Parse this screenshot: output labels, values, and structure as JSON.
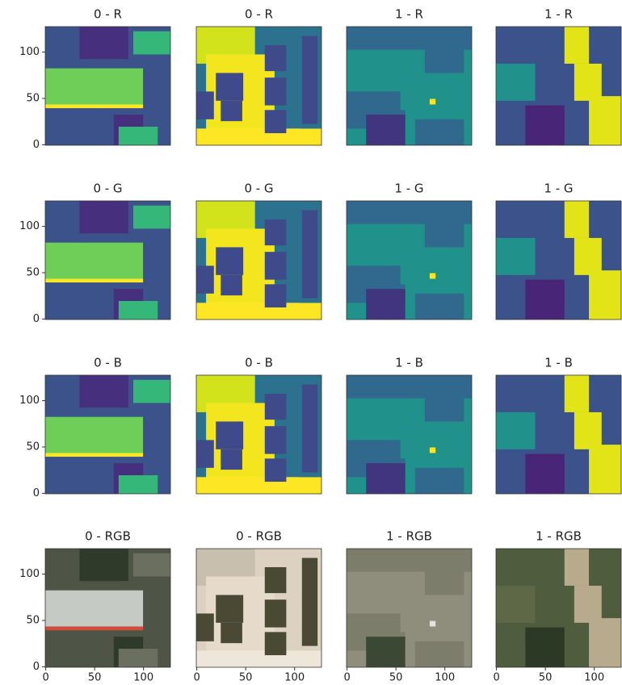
{
  "chart_data": [
    {
      "type": "image",
      "title": "0 - R",
      "ylim": [
        127.5,
        -0.5
      ],
      "yticks": [
        0,
        50,
        100
      ]
    },
    {
      "type": "image",
      "title": "0 - R"
    },
    {
      "type": "image",
      "title": "1 - R"
    },
    {
      "type": "image",
      "title": "1 - R"
    },
    {
      "type": "image",
      "title": "0 - G",
      "ylim": [
        127.5,
        -0.5
      ],
      "yticks": [
        0,
        50,
        100
      ]
    },
    {
      "type": "image",
      "title": "0 - G"
    },
    {
      "type": "image",
      "title": "1 - G"
    },
    {
      "type": "image",
      "title": "1 - G"
    },
    {
      "type": "image",
      "title": "0 - B",
      "ylim": [
        127.5,
        -0.5
      ],
      "yticks": [
        0,
        50,
        100
      ]
    },
    {
      "type": "image",
      "title": "0 - B"
    },
    {
      "type": "image",
      "title": "1 - B"
    },
    {
      "type": "image",
      "title": "1 - B"
    },
    {
      "type": "image",
      "title": "0 - RGB",
      "xlim": [
        -0.5,
        127.5
      ],
      "xticks": [
        0,
        50,
        100
      ],
      "ylim": [
        127.5,
        -0.5
      ],
      "yticks": [
        0,
        50,
        100
      ]
    },
    {
      "type": "image",
      "title": "0 - RGB",
      "xlim": [
        -0.5,
        127.5
      ],
      "xticks": [
        0,
        50,
        100
      ]
    },
    {
      "type": "image",
      "title": "1 - RGB",
      "xlim": [
        -0.5,
        127.5
      ],
      "xticks": [
        0,
        50,
        100
      ]
    },
    {
      "type": "image",
      "title": "1 - RGB",
      "xlim": [
        -0.5,
        127.5
      ],
      "xticks": [
        0,
        50,
        100
      ]
    }
  ]
}
